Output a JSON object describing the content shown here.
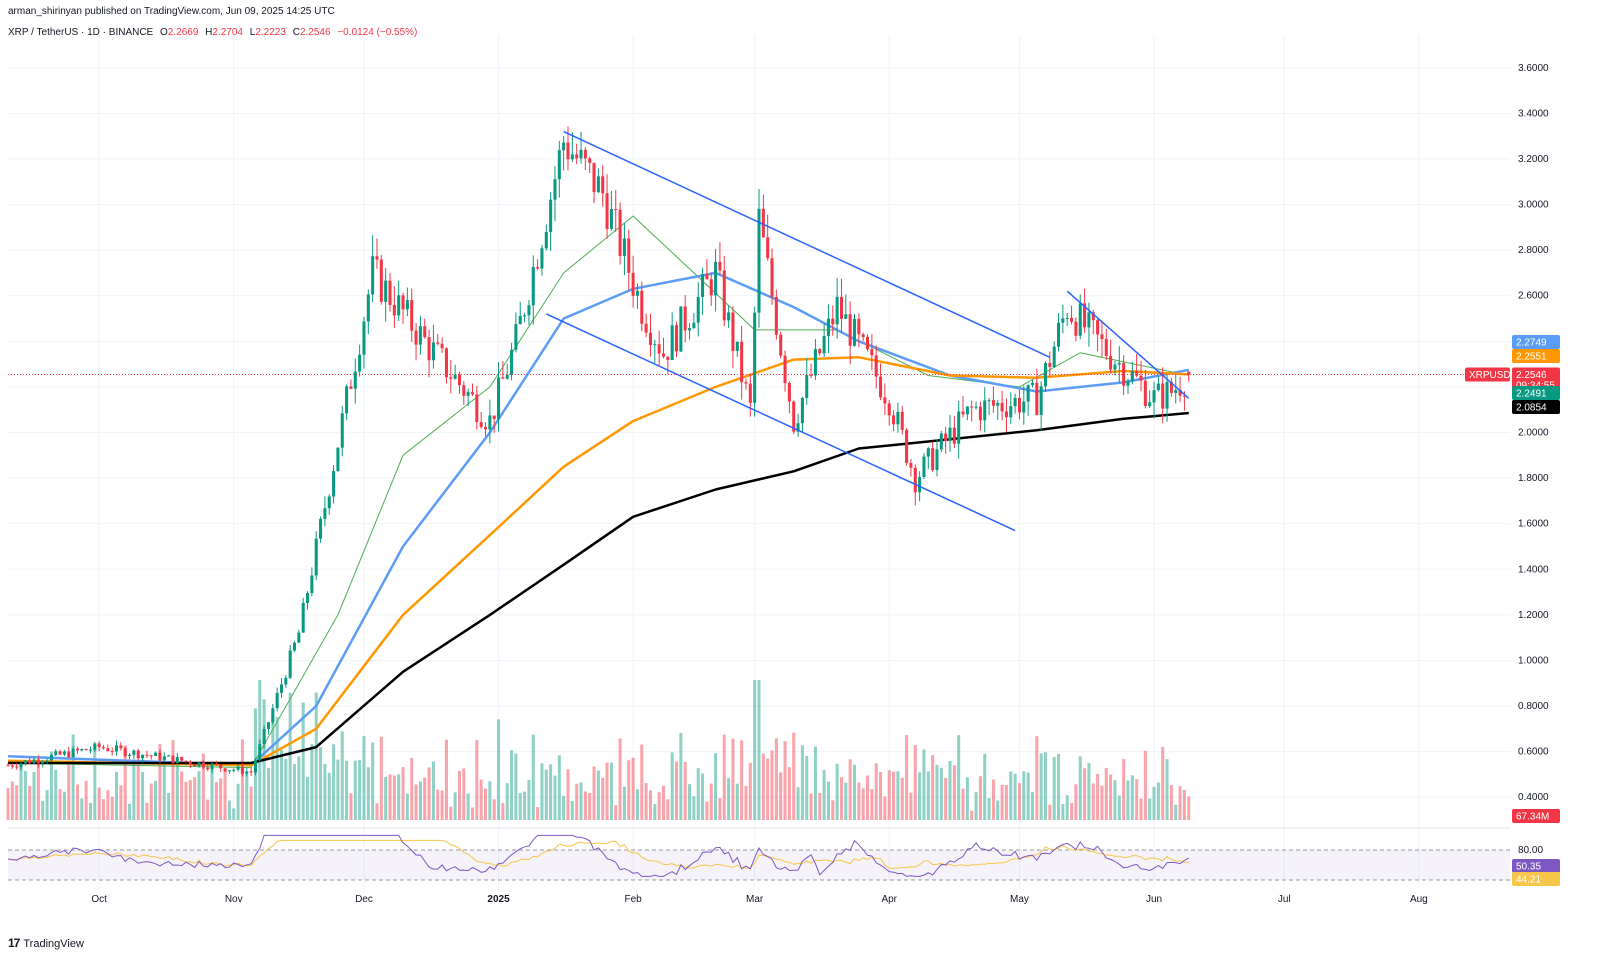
{
  "header": {
    "published": "arman_shirinyan published on TradingView.com, Jun 09, 2025 14:25 UTC",
    "symbol": "XRP / TetherUS · 1D · BINANCE",
    "ohlc": {
      "o_label": "O",
      "o": "2.2669",
      "h_label": "H",
      "h": "2.2704",
      "l_label": "L",
      "l": "2.2223",
      "c_label": "C",
      "c": "2.2546",
      "change": "−0.0124 (−0.55%)"
    }
  },
  "brand": {
    "logo": "17",
    "name": "TradingView"
  },
  "chart_data": {
    "type": "candlestick",
    "price_axis": {
      "ticks": [
        "3.6000",
        "3.4000",
        "3.2000",
        "3.0000",
        "2.8000",
        "2.6000",
        "2.4000",
        "2.2000",
        "2.0000",
        "1.8000",
        "1.6000",
        "1.4000",
        "1.2000",
        "1.0000",
        "0.8000",
        "0.6000",
        "0.4000"
      ],
      "ylim": [
        0.3,
        3.7
      ]
    },
    "time_axis": {
      "ticks": [
        "Oct",
        "Nov",
        "Dec",
        "2025",
        "Feb",
        "Mar",
        "Apr",
        "May",
        "Jun",
        "Jul",
        "Aug"
      ]
    },
    "price_tags": [
      {
        "name": "ma-blue",
        "label": "2.2749",
        "value": 2.2749,
        "color": "#5b9cf6"
      },
      {
        "name": "ma-orange",
        "label": "2.2551",
        "value": 2.2551,
        "color": "#ff9800"
      },
      {
        "name": "last-price",
        "label": "XRPUSDT",
        "value": 2.2546,
        "color": "#f23645"
      },
      {
        "name": "ma-green",
        "label": "2.2491",
        "value": 2.2491,
        "color": "#089981"
      },
      {
        "name": "ma-black",
        "label": "2.0854",
        "value": 2.0854,
        "color": "#000000"
      }
    ],
    "last_price": {
      "value": "2.2546",
      "countdown": "09:34:55",
      "symbol": "XRPUSDT"
    },
    "volume_tag": "67.34M",
    "rsi": {
      "upper": "80.00",
      "rsi_value": "50.35",
      "ma_value": "44.21"
    },
    "key_points": [
      {
        "date": "2024-09-10",
        "close": 0.54
      },
      {
        "date": "2024-10-01",
        "close": 0.62
      },
      {
        "date": "2024-11-05",
        "close": 0.51
      },
      {
        "date": "2024-11-16",
        "close": 1.12
      },
      {
        "date": "2024-12-03",
        "close": 2.7
      },
      {
        "date": "2024-12-15",
        "close": 2.4
      },
      {
        "date": "2024-12-30",
        "close": 2.05
      },
      {
        "date": "2025-01-05",
        "close": 2.4
      },
      {
        "date": "2025-01-16",
        "close": 3.28
      },
      {
        "date": "2025-01-25",
        "close": 3.05
      },
      {
        "date": "2025-02-03",
        "close": 2.55
      },
      {
        "date": "2025-02-08",
        "close": 2.35
      },
      {
        "date": "2025-02-20",
        "close": 2.7
      },
      {
        "date": "2025-02-28",
        "close": 2.1
      },
      {
        "date": "2025-03-02",
        "close": 2.93
      },
      {
        "date": "2025-03-10",
        "close": 2.05
      },
      {
        "date": "2025-03-20",
        "close": 2.55
      },
      {
        "date": "2025-04-01",
        "close": 2.15
      },
      {
        "date": "2025-04-07",
        "close": 1.8
      },
      {
        "date": "2025-04-20",
        "close": 2.1
      },
      {
        "date": "2025-05-05",
        "close": 2.15
      },
      {
        "date": "2025-05-12",
        "close": 2.55
      },
      {
        "date": "2025-05-20",
        "close": 2.38
      },
      {
        "date": "2025-06-01",
        "close": 2.15
      },
      {
        "date": "2025-06-05",
        "close": 2.18
      },
      {
        "date": "2025-06-09",
        "close": 2.2546
      }
    ],
    "moving_averages": [
      {
        "name": "ma-green",
        "color": "#4caf50",
        "points": [
          [
            "2024-09-10",
            0.55
          ],
          [
            "2024-11-05",
            0.53
          ],
          [
            "2024-11-25",
            1.2
          ],
          [
            "2024-12-10",
            1.9
          ],
          [
            "2024-12-30",
            2.2
          ],
          [
            "2025-01-16",
            2.7
          ],
          [
            "2025-02-01",
            2.95
          ],
          [
            "2025-02-15",
            2.7
          ],
          [
            "2025-03-01",
            2.45
          ],
          [
            "2025-03-20",
            2.45
          ],
          [
            "2025-04-10",
            2.25
          ],
          [
            "2025-05-01",
            2.2
          ],
          [
            "2025-05-15",
            2.35
          ],
          [
            "2025-06-09",
            2.25
          ]
        ]
      },
      {
        "name": "ma-blue",
        "color": "#5b9cf6",
        "points": [
          [
            "2024-09-10",
            0.58
          ],
          [
            "2024-11-05",
            0.54
          ],
          [
            "2024-11-20",
            0.8
          ],
          [
            "2024-12-10",
            1.5
          ],
          [
            "2024-12-30",
            2.0
          ],
          [
            "2025-01-16",
            2.5
          ],
          [
            "2025-02-01",
            2.63
          ],
          [
            "2025-02-20",
            2.7
          ],
          [
            "2025-03-10",
            2.55
          ],
          [
            "2025-03-25",
            2.4
          ],
          [
            "2025-04-15",
            2.25
          ],
          [
            "2025-05-05",
            2.18
          ],
          [
            "2025-05-25",
            2.22
          ],
          [
            "2025-06-09",
            2.2749
          ]
        ]
      },
      {
        "name": "ma-orange",
        "color": "#ff9800",
        "points": [
          [
            "2024-09-10",
            0.56
          ],
          [
            "2024-11-05",
            0.54
          ],
          [
            "2024-11-20",
            0.7
          ],
          [
            "2024-12-10",
            1.2
          ],
          [
            "2024-12-30",
            1.55
          ],
          [
            "2025-01-16",
            1.85
          ],
          [
            "2025-02-01",
            2.05
          ],
          [
            "2025-02-20",
            2.2
          ],
          [
            "2025-03-10",
            2.32
          ],
          [
            "2025-03-25",
            2.33
          ],
          [
            "2025-04-15",
            2.25
          ],
          [
            "2025-05-05",
            2.24
          ],
          [
            "2025-05-25",
            2.27
          ],
          [
            "2025-06-09",
            2.2551
          ]
        ]
      },
      {
        "name": "ma-black",
        "color": "#000000",
        "points": [
          [
            "2024-09-10",
            0.55
          ],
          [
            "2024-11-05",
            0.55
          ],
          [
            "2024-11-20",
            0.62
          ],
          [
            "2024-12-10",
            0.95
          ],
          [
            "2024-12-30",
            1.2
          ],
          [
            "2025-01-16",
            1.42
          ],
          [
            "2025-02-01",
            1.63
          ],
          [
            "2025-02-20",
            1.75
          ],
          [
            "2025-03-10",
            1.83
          ],
          [
            "2025-03-25",
            1.93
          ],
          [
            "2025-04-15",
            1.97
          ],
          [
            "2025-05-05",
            2.01
          ],
          [
            "2025-05-25",
            2.06
          ],
          [
            "2025-06-09",
            2.0854
          ]
        ]
      }
    ],
    "trendlines": [
      {
        "name": "upper-trendline",
        "from": [
          "2025-01-16",
          3.32
        ],
        "to": [
          "2025-05-08",
          2.33
        ]
      },
      {
        "name": "lower-trendline",
        "from": [
          "2025-01-12",
          2.52
        ],
        "to": [
          "2025-04-30",
          1.57
        ]
      },
      {
        "name": "short-trendline",
        "from": [
          "2025-05-12",
          2.62
        ],
        "to": [
          "2025-06-09",
          2.15
        ]
      }
    ],
    "grid": true
  }
}
